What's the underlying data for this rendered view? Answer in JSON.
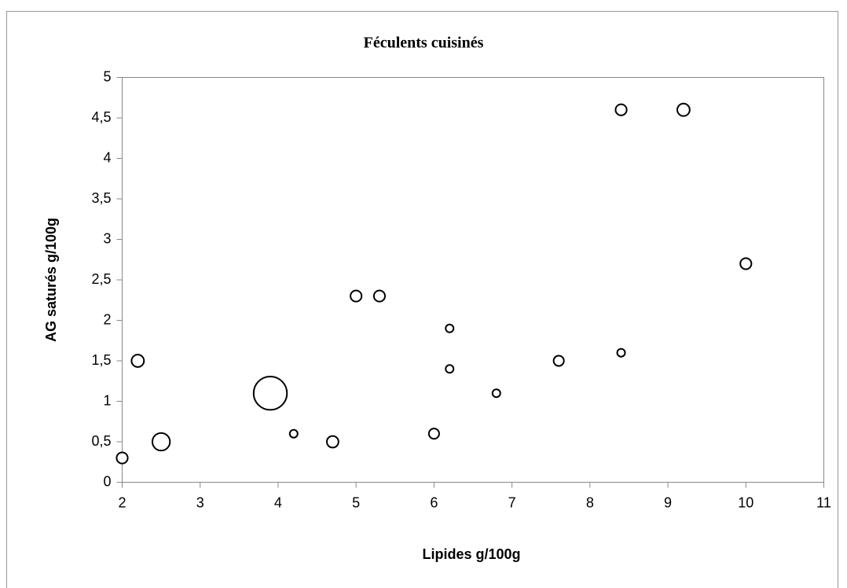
{
  "chart_data": {
    "type": "bubble",
    "title": "Féculents cuisinés",
    "x_label": "Lipides g/100g",
    "y_label": "AG saturés g/100g",
    "series": [
      {
        "x": [
          2,
          2.2,
          2.5,
          3.9,
          4.2,
          4.7,
          5,
          5.3,
          6,
          6.2,
          6.2,
          6.8,
          7.6,
          8.4,
          8.4,
          9.2,
          10
        ],
        "values": [
          0.3,
          1.5,
          0.5,
          1.1,
          0.6,
          0.5,
          2.3,
          2.3,
          0.6,
          1.9,
          1.4,
          1.1,
          1.5,
          1.6,
          4.6,
          4.6,
          2.7
        ],
        "sizes": [
          2,
          2.5,
          5,
          18,
          1,
          2.2,
          2,
          2,
          1.7,
          1,
          1,
          1,
          1.7,
          1,
          2,
          2.5,
          2
        ],
        "color": "#000000"
      }
    ],
    "xlim": [
      2,
      11
    ],
    "xticks": [
      2,
      3,
      4,
      5,
      6,
      7,
      8,
      9,
      10,
      11
    ],
    "ylim": [
      0,
      5
    ],
    "yticks": [
      0,
      {
        "value": 0.5,
        "label": "0,5"
      },
      1,
      {
        "value": 1.5,
        "label": "1,5"
      },
      2,
      {
        "value": 2.5,
        "label": "2,5"
      },
      3,
      {
        "value": 3.5,
        "label": "3,5"
      },
      4,
      {
        "value": 4.5,
        "label": "4,5"
      },
      5
    ],
    "grid": false
  }
}
